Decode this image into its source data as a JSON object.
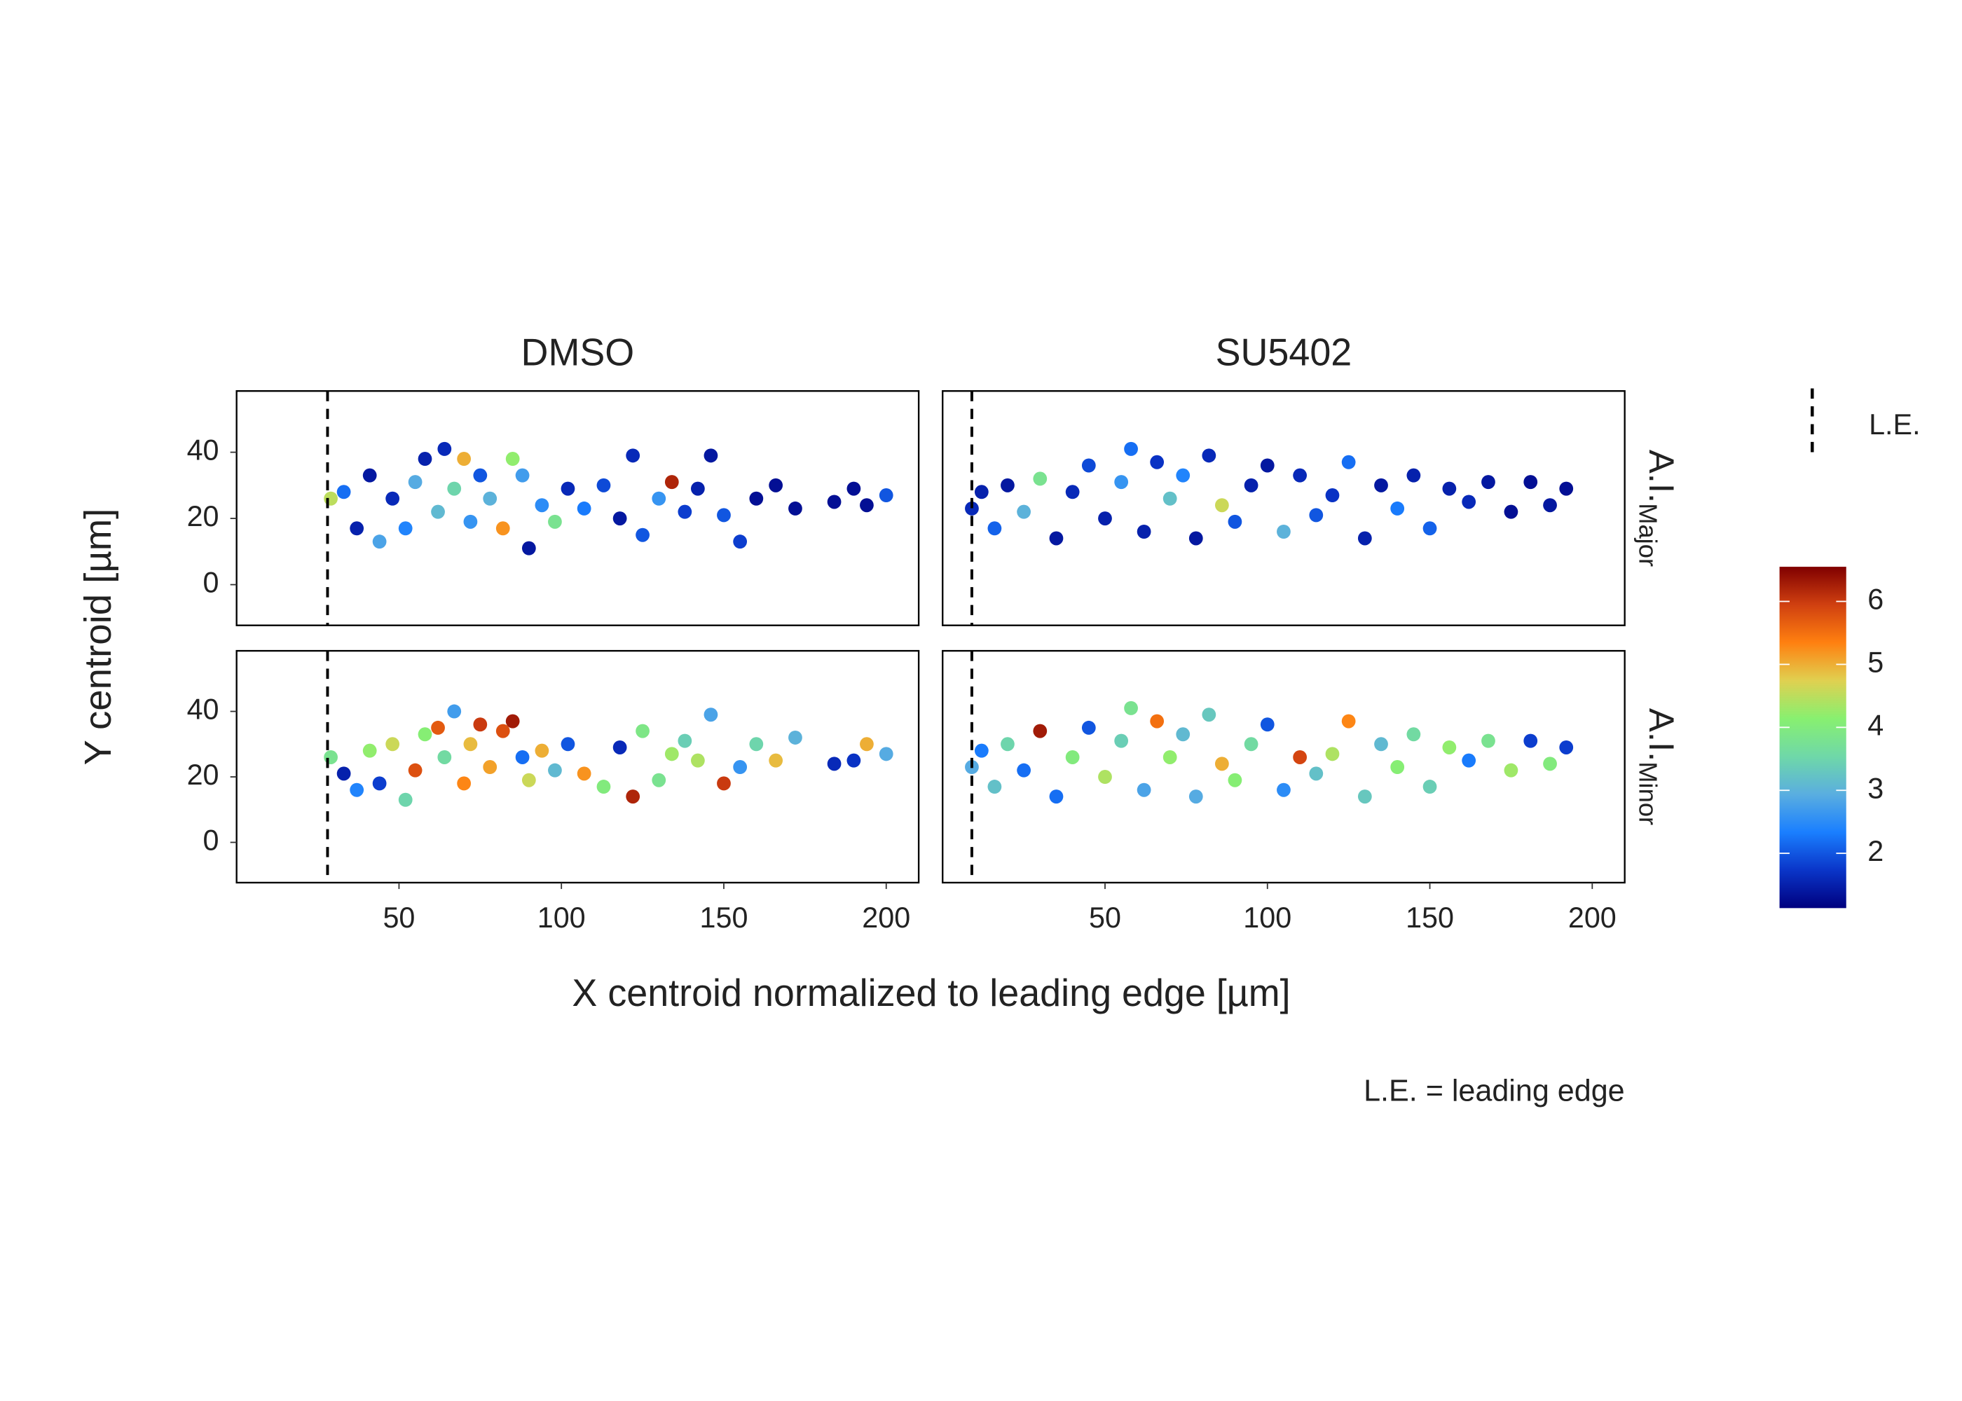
{
  "chart_data": {
    "type": "scatter",
    "columns": [
      "DMSO",
      "SU5402"
    ],
    "rows": [
      {
        "main": "A.I.",
        "sub": "Major"
      },
      {
        "main": "A.I.",
        "sub": "Minor"
      }
    ],
    "x_label": "X centroid normalized to leading edge [µm]",
    "y_label": "Y centroid [µm]",
    "caption": "L.E. = leading edge",
    "legend_label": "L.E.",
    "leading_edge": [
      28,
      9
    ],
    "xlim": [
      0,
      210
    ],
    "xticks": [
      50,
      100,
      150,
      200
    ],
    "ylim": [
      -12.3,
      58.5
    ],
    "yticks": [
      0,
      20,
      40
    ],
    "clim": [
      1.13,
      6.55
    ],
    "cticks": [
      2,
      3,
      4,
      5,
      6
    ],
    "colormap": [
      "#00007f",
      "#0a35c8",
      "#1a7fff",
      "#5aaee0",
      "#6fd8a8",
      "#88f070",
      "#e0d050",
      "#ff8010",
      "#d04010",
      "#800000"
    ],
    "panels": [
      {
        "x": [
          29,
          33,
          37,
          41,
          44,
          48,
          52,
          55,
          58,
          62,
          64,
          67,
          70,
          72,
          75,
          78,
          82,
          85,
          88,
          90,
          94,
          98,
          102,
          107,
          113,
          118,
          122,
          125,
          130,
          134,
          138,
          142,
          146,
          150,
          155,
          160,
          166,
          172,
          184,
          190,
          194,
          200
        ],
        "y": [
          26,
          28,
          17,
          33,
          13,
          26,
          17,
          31,
          38,
          22,
          41,
          29,
          38,
          19,
          33,
          26,
          17,
          38,
          33,
          11,
          24,
          19,
          29,
          23,
          30,
          20,
          39,
          15,
          26,
          31,
          22,
          29,
          39,
          21,
          13,
          26,
          30,
          23,
          25,
          29,
          24,
          27
        ],
        "c": [
          4.5,
          2.2,
          1.5,
          1.4,
          2.8,
          1.6,
          2.4,
          2.9,
          1.5,
          3.1,
          1.6,
          3.5,
          5.0,
          2.6,
          2.0,
          3.0,
          5.2,
          4.2,
          2.7,
          1.4,
          2.5,
          3.8,
          1.6,
          2.3,
          1.9,
          1.4,
          1.6,
          2.0,
          2.6,
          6.2,
          1.8,
          1.5,
          1.4,
          2.0,
          1.8,
          1.3,
          1.3,
          1.3,
          1.3,
          1.3,
          1.3,
          2.0
        ]
      },
      {
        "x": [
          9,
          12,
          16,
          20,
          25,
          30,
          35,
          40,
          45,
          50,
          55,
          58,
          62,
          66,
          70,
          74,
          78,
          82,
          86,
          90,
          95,
          100,
          105,
          110,
          115,
          120,
          125,
          130,
          135,
          140,
          145,
          150,
          156,
          162,
          168,
          175,
          181,
          187,
          192
        ],
        "y": [
          23,
          28,
          17,
          30,
          22,
          32,
          14,
          28,
          36,
          20,
          31,
          41,
          16,
          37,
          26,
          33,
          14,
          39,
          24,
          19,
          30,
          36,
          16,
          33,
          21,
          27,
          37,
          14,
          30,
          23,
          33,
          17,
          29,
          25,
          31,
          22,
          31,
          24,
          29
        ],
        "c": [
          1.6,
          1.5,
          2.1,
          1.4,
          3.0,
          3.8,
          1.4,
          1.6,
          1.9,
          1.5,
          2.6,
          2.2,
          1.5,
          1.7,
          3.2,
          2.4,
          1.4,
          1.6,
          4.6,
          2.0,
          1.5,
          1.4,
          3.0,
          1.6,
          2.0,
          1.7,
          2.2,
          1.5,
          1.4,
          2.3,
          1.5,
          2.1,
          1.5,
          1.6,
          1.4,
          1.3,
          1.3,
          1.4,
          1.3
        ]
      },
      {
        "x": [
          29,
          33,
          37,
          41,
          44,
          48,
          52,
          55,
          58,
          62,
          64,
          67,
          70,
          72,
          75,
          78,
          82,
          85,
          88,
          90,
          94,
          98,
          102,
          107,
          113,
          118,
          122,
          125,
          130,
          134,
          138,
          142,
          146,
          150,
          155,
          160,
          166,
          172,
          184,
          190,
          194,
          200
        ],
        "y": [
          26,
          21,
          16,
          28,
          18,
          30,
          13,
          22,
          33,
          35,
          26,
          40,
          18,
          30,
          36,
          23,
          34,
          37,
          26,
          19,
          28,
          22,
          30,
          21,
          17,
          29,
          14,
          34,
          19,
          27,
          31,
          25,
          39,
          18,
          23,
          30,
          25,
          32,
          24,
          25,
          30,
          27
        ],
        "c": [
          3.8,
          1.5,
          2.4,
          4.2,
          1.8,
          4.6,
          3.5,
          5.8,
          4.1,
          5.7,
          3.6,
          2.7,
          5.3,
          4.9,
          6.0,
          5.1,
          5.8,
          6.3,
          2.2,
          4.6,
          5.0,
          3.1,
          2.0,
          5.2,
          4.0,
          1.6,
          6.2,
          3.9,
          3.8,
          4.3,
          3.4,
          4.4,
          2.8,
          6.0,
          2.6,
          3.5,
          4.9,
          3.0,
          1.6,
          1.7,
          5.0,
          2.9
        ]
      },
      {
        "x": [
          9,
          12,
          16,
          20,
          25,
          30,
          35,
          40,
          45,
          50,
          55,
          58,
          62,
          66,
          70,
          74,
          78,
          82,
          86,
          90,
          95,
          100,
          105,
          110,
          115,
          120,
          125,
          130,
          135,
          140,
          145,
          150,
          156,
          162,
          168,
          175,
          181,
          187,
          192
        ],
        "y": [
          23,
          28,
          17,
          30,
          22,
          34,
          14,
          26,
          35,
          20,
          31,
          41,
          16,
          37,
          26,
          33,
          14,
          39,
          24,
          19,
          30,
          36,
          16,
          26,
          21,
          27,
          37,
          14,
          30,
          23,
          33,
          17,
          29,
          25,
          31,
          22,
          31,
          24,
          29
        ],
        "c": [
          2.9,
          2.3,
          3.2,
          3.5,
          2.2,
          6.3,
          2.2,
          4.0,
          2.0,
          4.4,
          3.4,
          3.8,
          2.8,
          5.5,
          4.2,
          3.1,
          2.9,
          3.3,
          5.0,
          4.1,
          3.6,
          2.0,
          2.5,
          5.9,
          3.2,
          4.4,
          5.3,
          3.3,
          3.1,
          4.1,
          3.6,
          3.4,
          4.2,
          2.3,
          3.8,
          4.3,
          1.8,
          4.0,
          1.8
        ]
      }
    ]
  }
}
